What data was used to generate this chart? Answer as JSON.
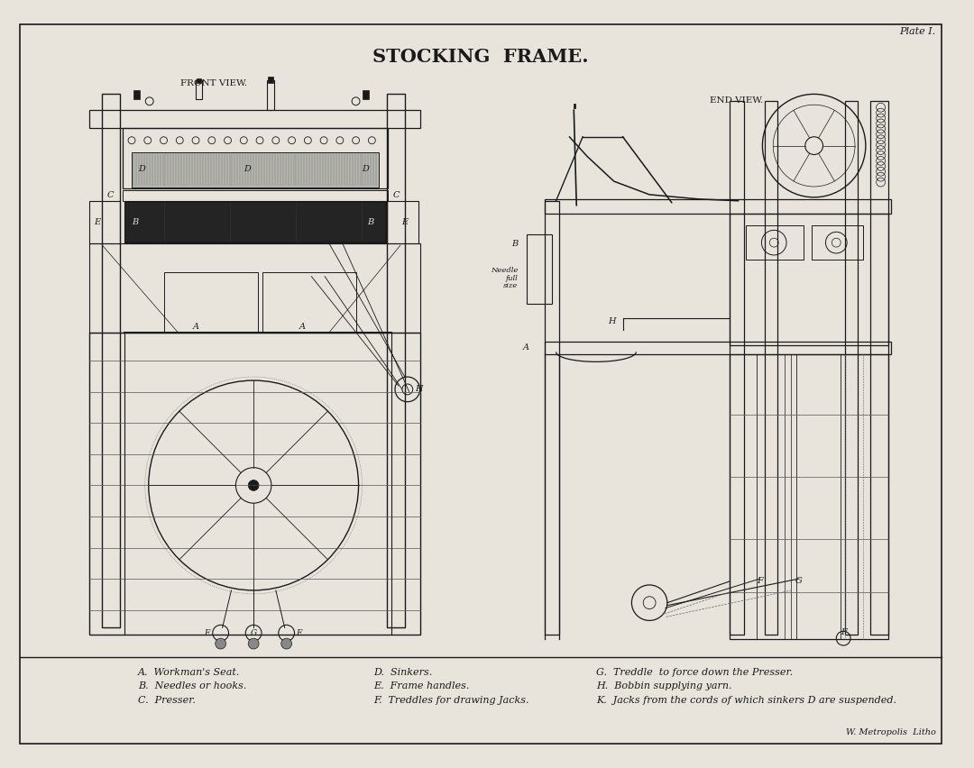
{
  "title": "STOCKING  FRAME.",
  "subtitle_front": "FRONT VIEW.",
  "subtitle_end": "END VIEW.",
  "plate": "Plate I.",
  "watermark": "W. Metropolis  Litho",
  "bg_color": "#e8e4dc",
  "line_color": "#1a1a1a",
  "legend_lines": [
    [
      "A.  Workman's Seat.",
      "D.  Sinkers.",
      "G.  Treddle  to force down the Presser."
    ],
    [
      "B.  Needles or hooks.",
      "E.  Frame handles.",
      "H.  Bobbin supplying yarn."
    ],
    [
      "C.  Presser.",
      "F.  Treddles for drawing Jacks.",
      "K.  Jacks from the cords of which sinkers D are suspended."
    ]
  ],
  "figsize": [
    10.8,
    8.52
  ],
  "dpi": 100
}
